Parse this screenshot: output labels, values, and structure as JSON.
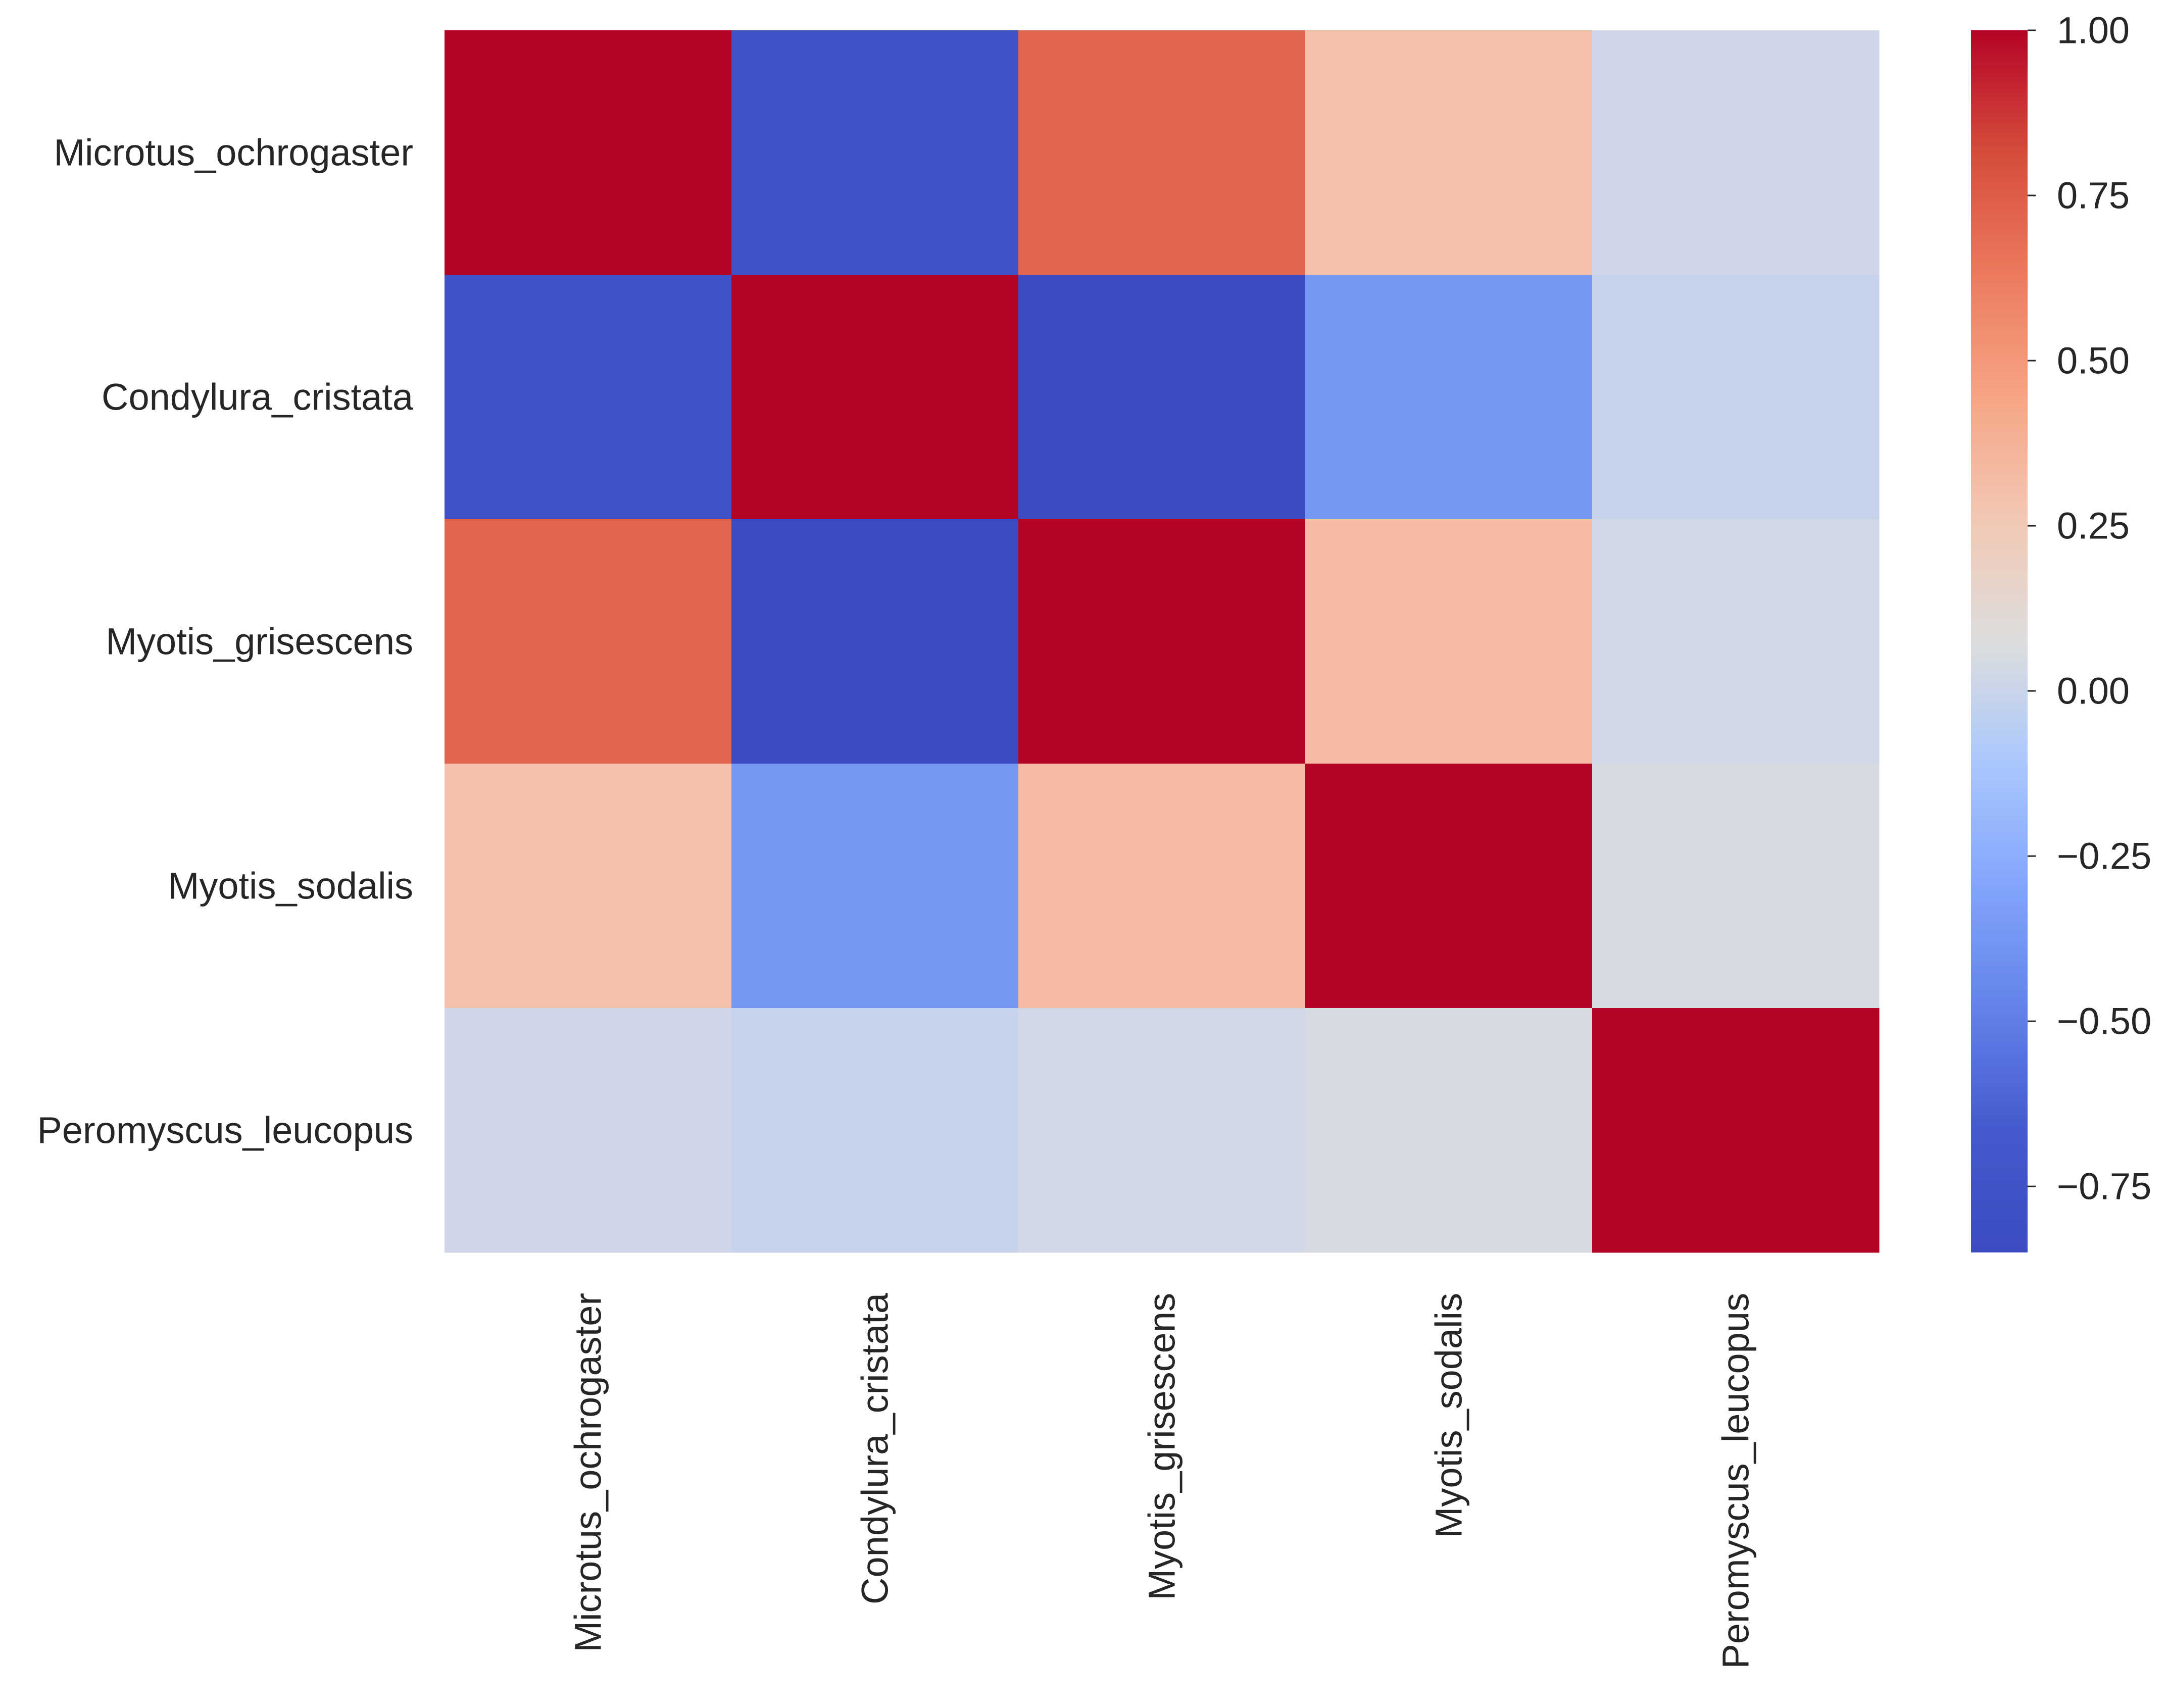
{
  "chart_data": {
    "type": "heatmap",
    "title": "",
    "xlabel": "",
    "ylabel": "",
    "row_labels": [
      "Microtus_ochrogaster",
      "Condylura_cristata",
      "Myotis_grisescens",
      "Myotis_sodalis",
      "Peromyscus_leucopus"
    ],
    "column_labels": [
      "Microtus_ochrogaster",
      "Condylura_cristata",
      "Myotis_grisescens",
      "Myotis_sodalis",
      "Peromyscus_leucopus"
    ],
    "values": [
      [
        1.0,
        -0.74,
        0.72,
        0.3,
        0.02
      ],
      [
        -0.74,
        1.0,
        -0.85,
        -0.37,
        -0.01
      ],
      [
        0.72,
        -0.85,
        1.0,
        0.33,
        0.03
      ],
      [
        0.3,
        -0.37,
        0.33,
        1.0,
        0.05
      ],
      [
        0.02,
        -0.01,
        0.03,
        0.05,
        1.0
      ]
    ],
    "colormap": "coolwarm",
    "colorbar": {
      "vmin": -0.85,
      "vmax": 1.0,
      "ticks": [
        1.0,
        0.75,
        0.5,
        0.25,
        0.0,
        -0.25,
        -0.5,
        -0.75
      ],
      "tick_labels": [
        "1.00",
        "0.75",
        "0.50",
        "0.25",
        "0.00",
        "−0.25",
        "−0.50",
        "−0.75"
      ]
    },
    "grid": false,
    "colors": {
      "low": "#3b4cc0",
      "mid": "#dddddd",
      "high": "#b40426"
    }
  }
}
